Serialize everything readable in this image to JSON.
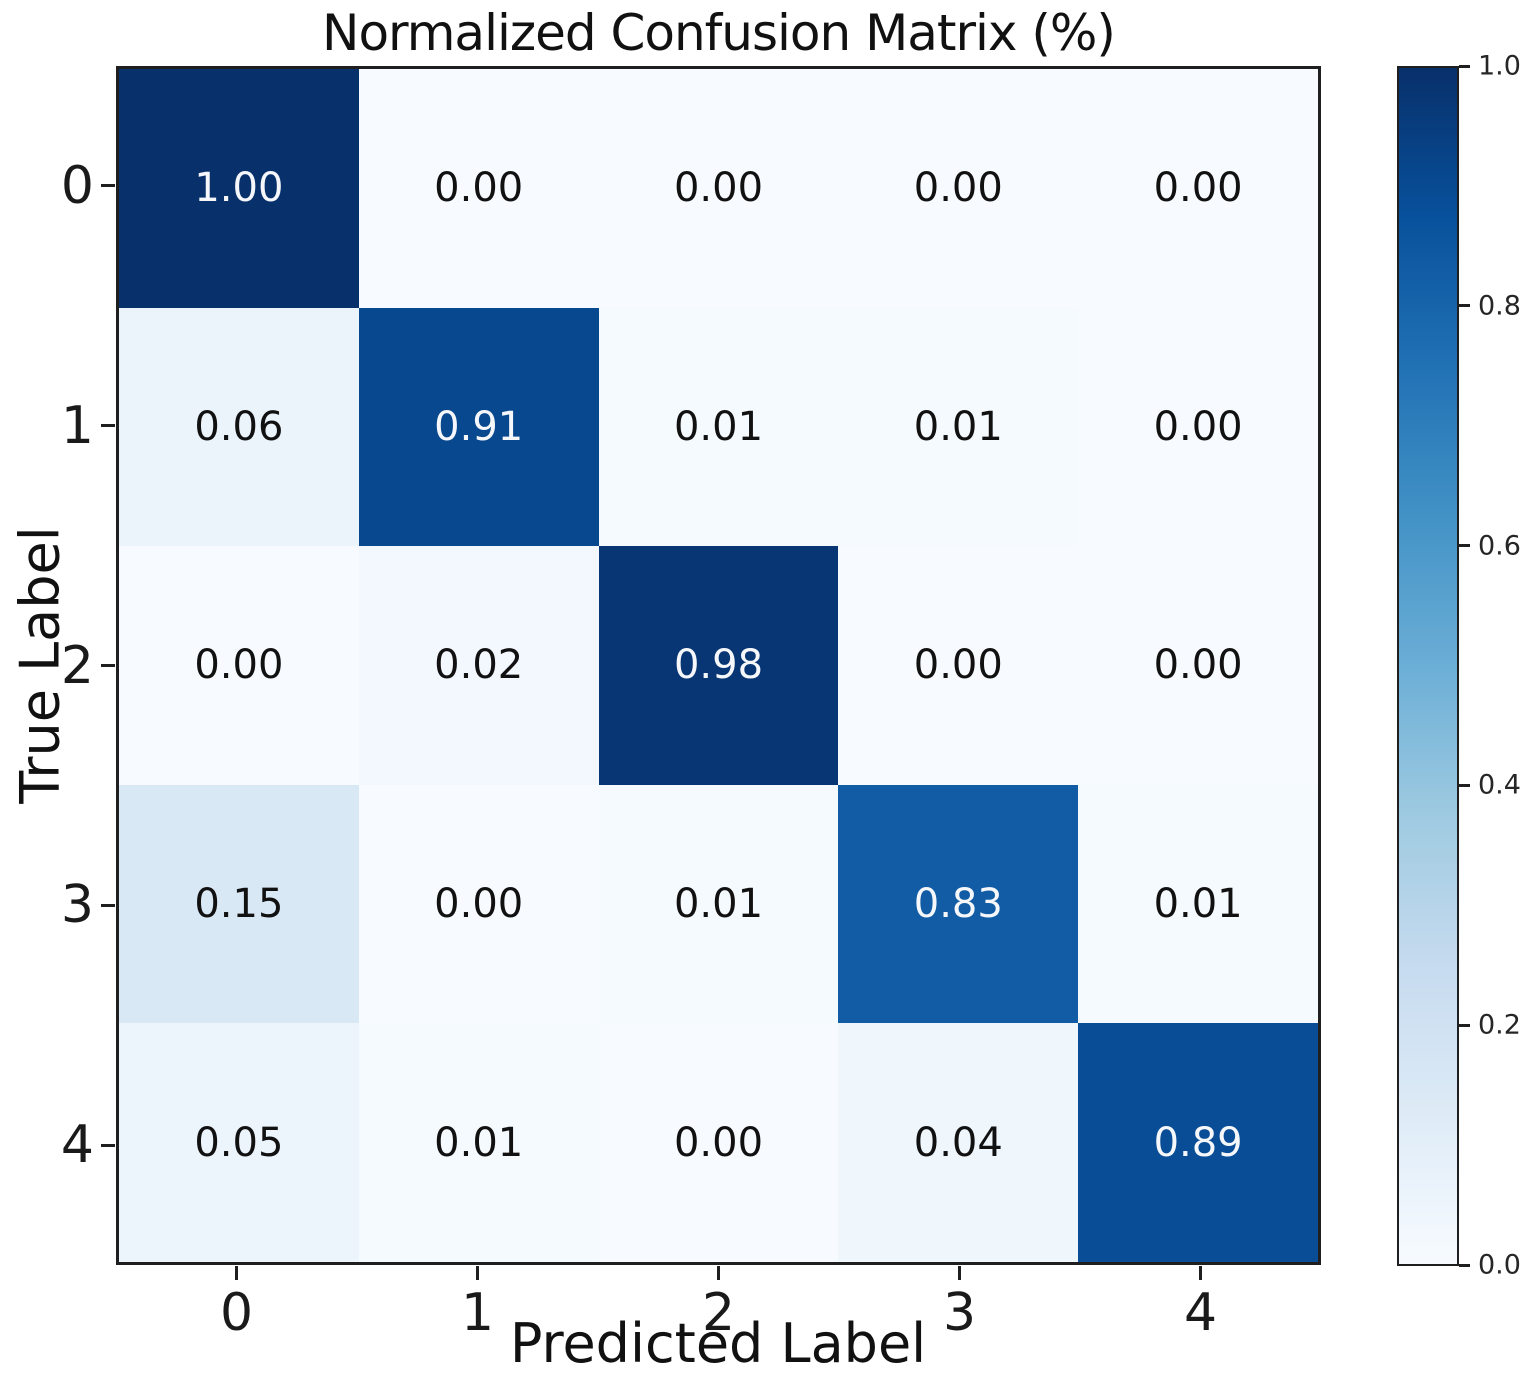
{
  "chart_data": {
    "type": "heatmap",
    "title": "Normalized Confusion Matrix (%)",
    "xlabel": "Predicted Label",
    "ylabel": "True Label",
    "x_tick_labels": [
      "0",
      "1",
      "2",
      "3",
      "4"
    ],
    "y_tick_labels": [
      "0",
      "1",
      "2",
      "3",
      "4"
    ],
    "values": [
      [
        1.0,
        0.0,
        0.0,
        0.0,
        0.0
      ],
      [
        0.06,
        0.91,
        0.01,
        0.01,
        0.0
      ],
      [
        0.0,
        0.02,
        0.98,
        0.0,
        0.0
      ],
      [
        0.15,
        0.0,
        0.01,
        0.83,
        0.01
      ],
      [
        0.05,
        0.01,
        0.0,
        0.04,
        0.89
      ]
    ],
    "cell_labels": [
      [
        "1.00",
        "0.00",
        "0.00",
        "0.00",
        "0.00"
      ],
      [
        "0.06",
        "0.91",
        "0.01",
        "0.01",
        "0.00"
      ],
      [
        "0.00",
        "0.02",
        "0.98",
        "0.00",
        "0.00"
      ],
      [
        "0.15",
        "0.00",
        "0.01",
        "0.83",
        "0.01"
      ],
      [
        "0.05",
        "0.01",
        "0.00",
        "0.04",
        "0.89"
      ]
    ],
    "cell_colors": [
      [
        "#08306b",
        "#f7fbff",
        "#f7fbff",
        "#f7fbff",
        "#f7fbff"
      ],
      [
        "#ebf3fb",
        "#08488e",
        "#f5fafe",
        "#f5fafe",
        "#f7fbff"
      ],
      [
        "#f7fbff",
        "#f3f8fe",
        "#083573",
        "#f7fbff",
        "#f7fbff"
      ],
      [
        "#d9e8f5",
        "#f7fbff",
        "#f5fafe",
        "#115ca5",
        "#f5fafe"
      ],
      [
        "#edf5fc",
        "#f5fafe",
        "#f7fbff",
        "#eff6fc",
        "#084d96"
      ]
    ],
    "white_text_threshold": 0.5,
    "colormap": "Blues",
    "colorbar": {
      "tick_labels": [
        "1.0",
        "0.8",
        "0.6",
        "0.4",
        "0.2",
        "0.0"
      ],
      "tick_values": [
        1.0,
        0.8,
        0.6,
        0.4,
        0.2,
        0.0
      ],
      "range": [
        0.0,
        1.0
      ],
      "gradient_stops_top_to_bottom": [
        "#08306b",
        "#08519c",
        "#2171b5",
        "#4292c6",
        "#6baed6",
        "#9ecae1",
        "#c6dbef",
        "#deebf7",
        "#f7fbff"
      ]
    },
    "grid": false,
    "legend_position": "colorbar-right"
  }
}
